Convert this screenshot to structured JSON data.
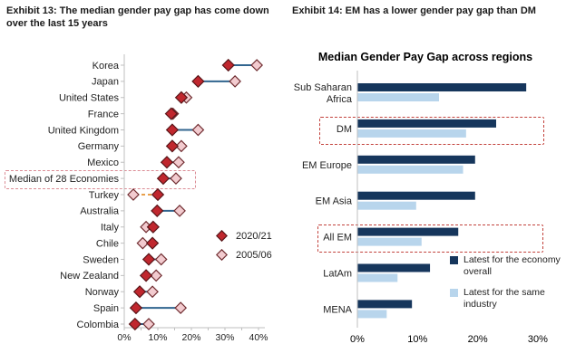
{
  "colors": {
    "dark_red": "#C0272E",
    "dark_red_border": "#571518",
    "light_pink": "#F2CBCF",
    "light_pink_border": "#6E2A2E",
    "navy": "#16365C",
    "light_blue": "#B8D5EC",
    "blue_line": "#31658F",
    "orange_line": "#E8A04C",
    "axis_gray": "#BFBFBF",
    "box_red": "#C2413B",
    "box_pink": "#DB8C95",
    "text": "#1F1F1F"
  },
  "left_panel": {
    "exhibit_title": "Exhibit 13: The median gender pay gap has come down over the last 15 years"
  },
  "right_panel": {
    "exhibit_title": "Exhibit 14: EM has a lower gender pay gap than DM",
    "chart_title": "Median Gender Pay Gap across regions"
  },
  "chart_data": [
    {
      "type": "scatter",
      "subtype": "dumbbell",
      "orientation": "horizontal",
      "title": "",
      "xlabel": "",
      "ylabel": "",
      "xlim": [
        0,
        40
      ],
      "x_ticks": [
        "0%",
        "10%",
        "20%",
        "30%",
        "40%"
      ],
      "grid": false,
      "highlight_category": "Median of 28 Economies",
      "categories": [
        "Korea",
        "Japan",
        "United States",
        "France",
        "United Kingdom",
        "Germany",
        "Mexico",
        "Median of 28 Economies",
        "Turkey",
        "Australia",
        "Italy",
        "Chile",
        "Sweden",
        "New Zealand",
        "Norway",
        "Spain",
        "Colombia"
      ],
      "series": [
        {
          "name": "2020/21",
          "values": [
            31,
            22,
            17,
            14,
            14.3,
            14.3,
            12.7,
            11.6,
            10,
            9.8,
            8.6,
            8.4,
            7.3,
            6.5,
            4.6,
            3.5,
            3.2
          ]
        },
        {
          "name": "2005/06",
          "values": [
            39.5,
            33,
            18.5,
            14.5,
            22,
            17,
            16.2,
            15.4,
            2.7,
            16.5,
            6.5,
            5.5,
            11,
            9.5,
            8.4,
            16.8,
            7.3
          ]
        }
      ],
      "gap_increased_categories": [
        "Turkey",
        "Italy",
        "Chile"
      ],
      "legend": [
        {
          "label": "2020/21"
        },
        {
          "label": "2005/06"
        }
      ],
      "legend_position": "center-right"
    },
    {
      "type": "bar",
      "orientation": "horizontal",
      "title": "Median Gender Pay Gap across regions",
      "xlabel": "",
      "ylabel": "",
      "xlim": [
        0,
        33
      ],
      "x_ticks": [
        "0%",
        "10%",
        "20%",
        "30%"
      ],
      "grid": false,
      "highlight_categories": [
        "DM",
        "All EM"
      ],
      "categories": [
        "Sub Saharan\nAfrica",
        "DM",
        "EM Europe",
        "EM Asia",
        "All EM",
        "LatAm",
        "MENA"
      ],
      "series": [
        {
          "name": "Latest for the economy overall",
          "values": [
            28,
            23,
            19.5,
            19.5,
            16.7,
            12,
            9
          ]
        },
        {
          "name": "Latest for the same industry",
          "values": [
            13.5,
            18,
            17.5,
            9.7,
            10.6,
            6.6,
            4.8
          ]
        }
      ],
      "legend": [
        {
          "lines": [
            "Latest for the economy",
            "overall"
          ]
        },
        {
          "lines": [
            "Latest for the same industry"
          ]
        }
      ],
      "legend_position": "bottom-right"
    }
  ]
}
